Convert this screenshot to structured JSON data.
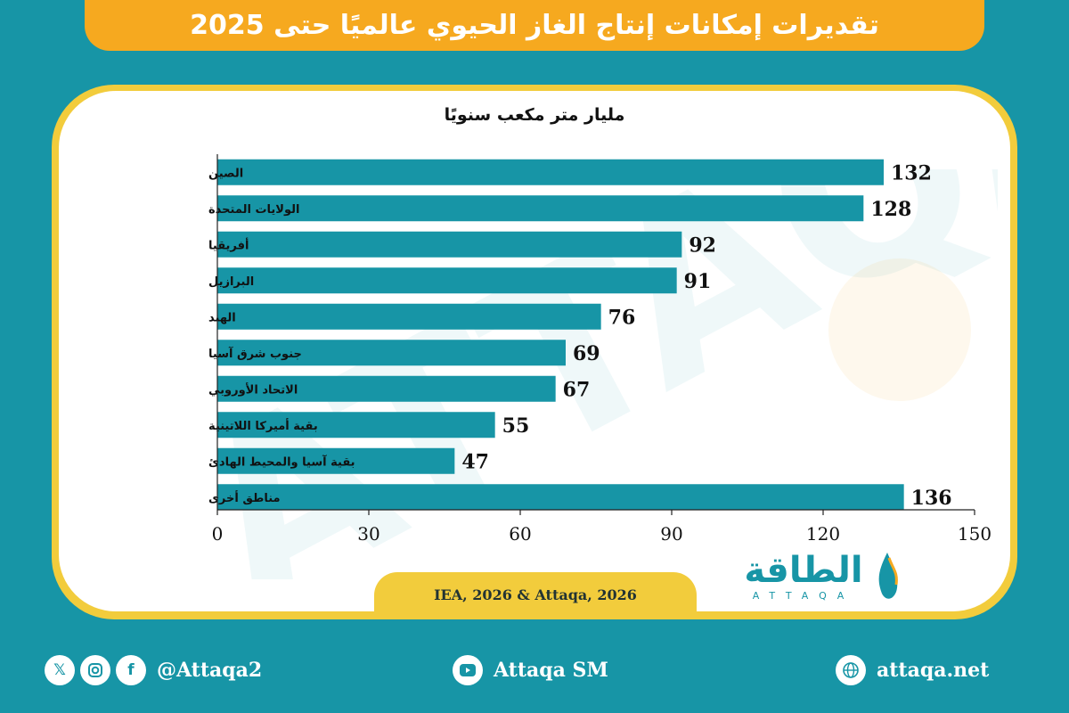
{
  "header": {
    "title": "تقديرات إمكانات إنتاج الغاز الحيوي عالميًا حتى 2025"
  },
  "chart_data": {
    "type": "bar",
    "orientation": "horizontal",
    "unit_label": "مليار متر مكعب سنويًا",
    "categories": [
      "الصين",
      "الولايات المتحدة",
      "أفريقيا",
      "البرازيل",
      "الهند",
      "جنوب شرق آسيا",
      "الاتحاد الأوروبي",
      "بقية أميركا اللاتينية",
      "بقية آسيا والمحيط الهادئ",
      "مناطق أخرى"
    ],
    "values": [
      132,
      128,
      92,
      91,
      76,
      69,
      67,
      55,
      47,
      136
    ],
    "xlim": [
      0,
      150
    ],
    "xticks": [
      0,
      30,
      60,
      90,
      120,
      150
    ],
    "bar_color": "#1795a6",
    "grid": false,
    "legend": "none"
  },
  "source": {
    "text": "IEA, 2026 & Attaqa, 2026"
  },
  "logo": {
    "text": "الطاقة",
    "sub": "ATTAQA"
  },
  "footer": {
    "social_handle": "@Attaqa2",
    "youtube": "Attaqa SM",
    "website": "attaqa.net",
    "icons": [
      "x-icon",
      "instagram-icon",
      "facebook-icon",
      "youtube-icon",
      "globe-icon"
    ]
  },
  "colors": {
    "background": "#1795a6",
    "banner": "#f6a91f",
    "card_border": "#f2cc3c",
    "bars": "#1795a6"
  }
}
